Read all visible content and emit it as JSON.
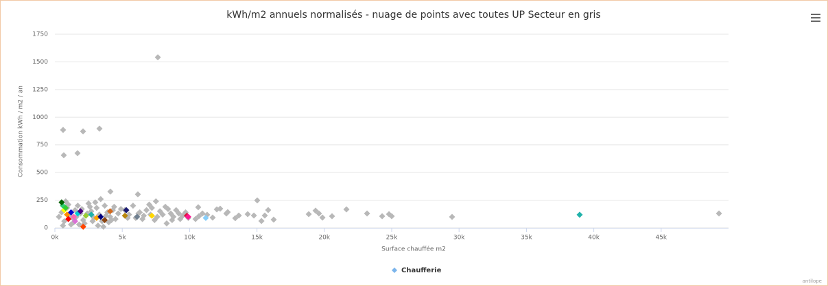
{
  "chart_data": {
    "type": "scatter",
    "title": "kWh/m2 annuels normalisés - nuage de points avec toutes UP Secteur en gris",
    "x_label": "Surface chauffée m2",
    "y_label": "Consommation kWh / m2 / an",
    "credit": "antilope",
    "xlim": [
      0,
      50000
    ],
    "ylim": [
      0,
      1750
    ],
    "xticks": [
      {
        "value": 0,
        "label": "0k"
      },
      {
        "value": 5000,
        "label": "5k"
      },
      {
        "value": 10000,
        "label": "10k"
      },
      {
        "value": 15000,
        "label": "15k"
      },
      {
        "value": 20000,
        "label": "20k"
      },
      {
        "value": 25000,
        "label": "25k"
      },
      {
        "value": 30000,
        "label": "30k"
      },
      {
        "value": 35000,
        "label": "35k"
      },
      {
        "value": 40000,
        "label": "40k"
      },
      {
        "value": 45000,
        "label": "45k"
      }
    ],
    "yticks": [
      0,
      250,
      500,
      750,
      1000,
      1250,
      1500,
      1750
    ],
    "grid": true,
    "legend": "bottom",
    "series": [
      {
        "color": "#b8b8b8",
        "x": [
          7640,
          610,
          2090,
          3310,
          660,
          1680,
          4120,
          6160,
          15020,
          49290,
          29480,
          18840,
          19350,
          19600,
          19860,
          20570,
          21640,
          23170,
          24290,
          24800,
          25000,
          14310,
          14770,
          15330,
          15580,
          15830,
          16240,
          13390,
          13650,
          12830,
          12020,
          12270,
          12730,
          11710,
          11300,
          10640,
          10690,
          10440,
          10950,
          5200,
          5500,
          6000,
          6300,
          6600,
          7000,
          7200,
          7500,
          7800,
          8000,
          8200,
          8400,
          8600,
          8800,
          9000,
          9300,
          9500,
          9700,
          9900,
          8300,
          7400,
          6800,
          5800,
          6200,
          7600,
          8700,
          9200,
          6500,
          5400,
          7100,
          300,
          500,
          700,
          900,
          1100,
          1300,
          1500,
          1700,
          1900,
          2100,
          2300,
          2500,
          2700,
          2900,
          3100,
          3300,
          3500,
          3700,
          3900,
          4100,
          4300,
          4500,
          4700,
          4900,
          600,
          1200,
          2200,
          3200,
          3600,
          4000,
          800,
          1000,
          2600,
          3000,
          3400,
          1400,
          2000,
          2800,
          3800,
          4400,
          1600,
          2400,
          4200,
          1800
        ],
        "values": [
          1541,
          885,
          872,
          897,
          656,
          675,
          328,
          303,
          248,
          130,
          99,
          124,
          155,
          130,
          93,
          105,
          167,
          130,
          105,
          124,
          105,
          124,
          111,
          62,
          111,
          161,
          74,
          87,
          111,
          142,
          167,
          173,
          130,
          93,
          118,
          186,
          105,
          80,
          130,
          160,
          120,
          90,
          140,
          110,
          210,
          180,
          240,
          150,
          120,
          190,
          170,
          130,
          100,
          160,
          80,
          110,
          140,
          90,
          40,
          70,
          160,
          200,
          130,
          100,
          70,
          130,
          80,
          90,
          120,
          100,
          140,
          60,
          180,
          120,
          90,
          160,
          200,
          130,
          70,
          110,
          220,
          150,
          90,
          180,
          120,
          60,
          200,
          140,
          100,
          160,
          80,
          130,
          170,
          20,
          30,
          40,
          20,
          10,
          50,
          240,
          210,
          190,
          230,
          260,
          50,
          170,
          60,
          110,
          190,
          100,
          130,
          70,
          30
        ]
      },
      {
        "name": "Chaufferie",
        "color": "#7cb5ec",
        "x": [
          600,
          700,
          900,
          1000,
          1200,
          1400,
          1500,
          1700,
          1900,
          2100,
          2300,
          2700,
          3100,
          3400,
          3700,
          4100,
          5300,
          5200,
          6100,
          7200,
          9800,
          9900,
          11200,
          38950,
          500,
          800
        ],
        "values": [
          200,
          160,
          120,
          80,
          140,
          100,
          60,
          130,
          150,
          10,
          110,
          120,
          90,
          100,
          70,
          150,
          160,
          110,
          100,
          110,
          110,
          100,
          90,
          118,
          230,
          180
        ],
        "colors": [
          "#2ecc71",
          "#ffff00",
          "#ff8c00",
          "#ff0000",
          "#0000cd",
          "#ff69b4",
          "#da70d6",
          "#00ced1",
          "#4b0082",
          "#ff4500",
          "#9acd32",
          "#20b2aa",
          "#ffa500",
          "#000080",
          "#8b4513",
          "#d2691e",
          "#191970",
          "#b8860b",
          "#708090",
          "#ffd700",
          "#dc143c",
          "#ff1493",
          "#87cefa",
          "#20b2aa",
          "#006400",
          "#32cd32"
        ]
      }
    ]
  }
}
